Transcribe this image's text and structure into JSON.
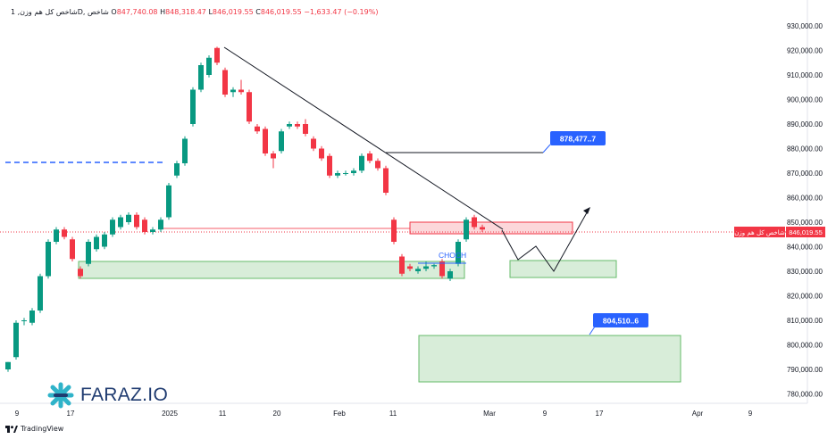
{
  "header": {
    "symbol_label": "شاخص کل هم وزن, 1D, شاخص",
    "open_label": "O",
    "open_value": "847,740.08",
    "high_label": "H",
    "high_value": "848,318.47",
    "low_label": "L",
    "low_value": "846,019.55",
    "close_label": "C",
    "close_value": "846,019.55",
    "change": "−1,633.47 (−0.19%)"
  },
  "price_tag": {
    "name": "شاخص کل هم وزن",
    "value": "846,019.55"
  },
  "watermark": {
    "brand": "FARAZ.IO"
  },
  "footer": {
    "tradingview": "TradingView"
  },
  "colors": {
    "up": "#089981",
    "down": "#f23645",
    "zone_green": "#4caf50",
    "zone_red": "#f23645",
    "label_blue": "#2962ff",
    "dashed_level": "#2962ff"
  },
  "chart_data": {
    "type": "candlestick",
    "y_axis": {
      "range": [
        774000,
        932000
      ],
      "ticks": [
        "930,000.00",
        "920,000.00",
        "910,000.00",
        "900,000.00",
        "890,000.00",
        "880,000.00",
        "870,000.00",
        "860,000.00",
        "850,000.00",
        "840,000.00",
        "830,000.00",
        "820,000.00",
        "810,000.00",
        "800,000.00",
        "790,000.00",
        "780,000.00"
      ],
      "tick_values": [
        930000,
        920000,
        910000,
        900000,
        890000,
        880000,
        870000,
        860000,
        850000,
        840000,
        830000,
        820000,
        810000,
        800000,
        790000,
        780000
      ]
    },
    "x_axis": {
      "labels": [
        "9",
        "17",
        "2025",
        "11",
        "20",
        "Feb",
        "11",
        "Mar",
        "9",
        "17",
        "Apr",
        "9"
      ]
    },
    "candles": [
      {
        "o": 790000,
        "h": 792000,
        "l": 789000,
        "c": 793000
      },
      {
        "o": 795000,
        "h": 810000,
        "l": 794000,
        "c": 809000
      },
      {
        "o": 810000,
        "h": 811000,
        "l": 808000,
        "c": 810000
      },
      {
        "o": 809000,
        "h": 815000,
        "l": 808000,
        "c": 814000
      },
      {
        "o": 814000,
        "h": 829000,
        "l": 813000,
        "c": 828000
      },
      {
        "o": 828000,
        "h": 843000,
        "l": 827000,
        "c": 842000
      },
      {
        "o": 842000,
        "h": 848000,
        "l": 841000,
        "c": 847000
      },
      {
        "o": 847000,
        "h": 848000,
        "l": 843000,
        "c": 844000
      },
      {
        "o": 843000,
        "h": 844000,
        "l": 834000,
        "c": 835000
      },
      {
        "o": 831000,
        "h": 832000,
        "l": 827000,
        "c": 828000
      },
      {
        "o": 833000,
        "h": 843000,
        "l": 832000,
        "c": 842000
      },
      {
        "o": 839000,
        "h": 845000,
        "l": 838000,
        "c": 844000
      },
      {
        "o": 840000,
        "h": 846000,
        "l": 839000,
        "c": 845000
      },
      {
        "o": 845000,
        "h": 852000,
        "l": 844000,
        "c": 851000
      },
      {
        "o": 848000,
        "h": 853000,
        "l": 847000,
        "c": 852000
      },
      {
        "o": 850000,
        "h": 854000,
        "l": 849000,
        "c": 853000
      },
      {
        "o": 853000,
        "h": 854000,
        "l": 847000,
        "c": 848000
      },
      {
        "o": 851000,
        "h": 852000,
        "l": 845000,
        "c": 846000
      },
      {
        "o": 846000,
        "h": 848000,
        "l": 845000,
        "c": 847000
      },
      {
        "o": 847000,
        "h": 852000,
        "l": 846000,
        "c": 851000
      },
      {
        "o": 852000,
        "h": 866000,
        "l": 851000,
        "c": 865000
      },
      {
        "o": 869000,
        "h": 875000,
        "l": 868000,
        "c": 874000
      },
      {
        "o": 874000,
        "h": 885000,
        "l": 873000,
        "c": 884000
      },
      {
        "o": 890000,
        "h": 905000,
        "l": 889000,
        "c": 904000
      },
      {
        "o": 904000,
        "h": 915000,
        "l": 903000,
        "c": 914000
      },
      {
        "o": 910000,
        "h": 918000,
        "l": 909000,
        "c": 917000
      },
      {
        "o": 921000,
        "h": 921500,
        "l": 914000,
        "c": 915000
      },
      {
        "o": 912000,
        "h": 913000,
        "l": 901000,
        "c": 902000
      },
      {
        "o": 903000,
        "h": 905000,
        "l": 901000,
        "c": 904000
      },
      {
        "o": 904000,
        "h": 908000,
        "l": 902000,
        "c": 903000
      },
      {
        "o": 903000,
        "h": 904000,
        "l": 890000,
        "c": 891000
      },
      {
        "o": 889000,
        "h": 890000,
        "l": 886000,
        "c": 887000
      },
      {
        "o": 888000,
        "h": 889000,
        "l": 877000,
        "c": 878000
      },
      {
        "o": 878000,
        "h": 879000,
        "l": 872000,
        "c": 876000
      },
      {
        "o": 879000,
        "h": 888000,
        "l": 878000,
        "c": 887000
      },
      {
        "o": 889000,
        "h": 891000,
        "l": 888000,
        "c": 890000
      },
      {
        "o": 890000,
        "h": 891000,
        "l": 888000,
        "c": 889000
      },
      {
        "o": 890000,
        "h": 892000,
        "l": 885000,
        "c": 886000
      },
      {
        "o": 884000,
        "h": 885000,
        "l": 879000,
        "c": 880000
      },
      {
        "o": 880000,
        "h": 881000,
        "l": 875000,
        "c": 876000
      },
      {
        "o": 877000,
        "h": 878000,
        "l": 868000,
        "c": 869000
      },
      {
        "o": 869000,
        "h": 871000,
        "l": 868000,
        "c": 870000
      },
      {
        "o": 870000,
        "h": 871000,
        "l": 869000,
        "c": 870000
      },
      {
        "o": 870000,
        "h": 872000,
        "l": 869000,
        "c": 871000
      },
      {
        "o": 871000,
        "h": 878000,
        "l": 870000,
        "c": 877000
      },
      {
        "o": 878000,
        "h": 879000,
        "l": 874000,
        "c": 875000
      },
      {
        "o": 875000,
        "h": 876000,
        "l": 871000,
        "c": 872000
      },
      {
        "o": 872000,
        "h": 873000,
        "l": 861000,
        "c": 862000
      },
      {
        "o": 851000,
        "h": 852000,
        "l": 841000,
        "c": 842000
      },
      {
        "o": 836000,
        "h": 837000,
        "l": 828000,
        "c": 829000
      },
      {
        "o": 832000,
        "h": 833000,
        "l": 830000,
        "c": 831000
      },
      {
        "o": 830000,
        "h": 832000,
        "l": 829000,
        "c": 831000
      },
      {
        "o": 831000,
        "h": 834000,
        "l": 830000,
        "c": 832000
      },
      {
        "o": 832000,
        "h": 833000,
        "l": 831000,
        "c": 832500
      },
      {
        "o": 834000,
        "h": 835000,
        "l": 827000,
        "c": 828000
      },
      {
        "o": 827000,
        "h": 831000,
        "l": 826000,
        "c": 830000
      },
      {
        "o": 833000,
        "h": 843000,
        "l": 832000,
        "c": 842000
      },
      {
        "o": 843000,
        "h": 852000,
        "l": 842000,
        "c": 851000
      },
      {
        "o": 852000,
        "h": 853000,
        "l": 847000,
        "c": 848000
      },
      {
        "o": 848000,
        "h": 849000,
        "l": 846000,
        "c": 847000
      }
    ],
    "annotations": {
      "label_upper": "878,477..7",
      "label_lower": "804,510..6",
      "choch": "CHOCH"
    }
  }
}
